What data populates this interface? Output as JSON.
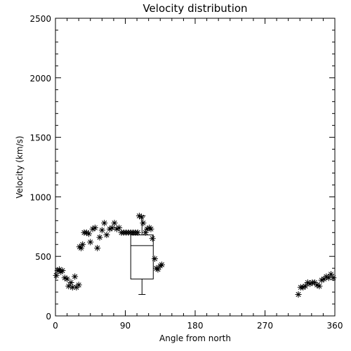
{
  "chart_data": {
    "type": "scatter",
    "title": "Velocity distribution",
    "xlabel": "Angle from north",
    "ylabel": "Velocity (km/s)",
    "xlim": [
      0,
      360
    ],
    "ylim": [
      0,
      2500
    ],
    "xticks": [
      0,
      90,
      180,
      270,
      360
    ],
    "yticks": [
      0,
      500,
      1000,
      1500,
      2000,
      2500
    ],
    "xticklabels": [
      "0",
      "90",
      "180",
      "270",
      "360"
    ],
    "yticklabels": [
      "0",
      "500",
      "1000",
      "1500",
      "2000",
      "2500"
    ],
    "grid": false,
    "marker": "asterisk",
    "points": [
      [
        1,
        340
      ],
      [
        3,
        380
      ],
      [
        5,
        390
      ],
      [
        7,
        370
      ],
      [
        9,
        380
      ],
      [
        12,
        320
      ],
      [
        15,
        310
      ],
      [
        17,
        250
      ],
      [
        20,
        280
      ],
      [
        22,
        240
      ],
      [
        25,
        330
      ],
      [
        27,
        240
      ],
      [
        30,
        260
      ],
      [
        31,
        580
      ],
      [
        33,
        570
      ],
      [
        35,
        600
      ],
      [
        37,
        700
      ],
      [
        40,
        700
      ],
      [
        43,
        690
      ],
      [
        45,
        620
      ],
      [
        48,
        730
      ],
      [
        51,
        740
      ],
      [
        54,
        570
      ],
      [
        57,
        660
      ],
      [
        60,
        720
      ],
      [
        63,
        780
      ],
      [
        66,
        680
      ],
      [
        70,
        730
      ],
      [
        73,
        740
      ],
      [
        76,
        780
      ],
      [
        79,
        730
      ],
      [
        82,
        740
      ],
      [
        85,
        700
      ],
      [
        88,
        700
      ],
      [
        91,
        700
      ],
      [
        94,
        700
      ],
      [
        97,
        700
      ],
      [
        100,
        700
      ],
      [
        103,
        700
      ],
      [
        106,
        700
      ],
      [
        108,
        840
      ],
      [
        111,
        830
      ],
      [
        113,
        780
      ],
      [
        116,
        700
      ],
      [
        118,
        730
      ],
      [
        121,
        740
      ],
      [
        123,
        730
      ],
      [
        125,
        650
      ],
      [
        128,
        480
      ],
      [
        130,
        400
      ],
      [
        132,
        390
      ],
      [
        135,
        420
      ],
      [
        137,
        430
      ],
      [
        313,
        180
      ],
      [
        316,
        240
      ],
      [
        319,
        240
      ],
      [
        322,
        250
      ],
      [
        325,
        280
      ],
      [
        328,
        270
      ],
      [
        331,
        280
      ],
      [
        334,
        280
      ],
      [
        337,
        260
      ],
      [
        340,
        250
      ],
      [
        343,
        300
      ],
      [
        346,
        310
      ],
      [
        349,
        330
      ],
      [
        352,
        320
      ],
      [
        355,
        350
      ],
      [
        358,
        320
      ]
    ],
    "boxplot": {
      "x_left": 97,
      "x_right": 126,
      "whisker_low": 180,
      "q1": 310,
      "median": 590,
      "q3": 680,
      "whisker_high": 840
    }
  }
}
